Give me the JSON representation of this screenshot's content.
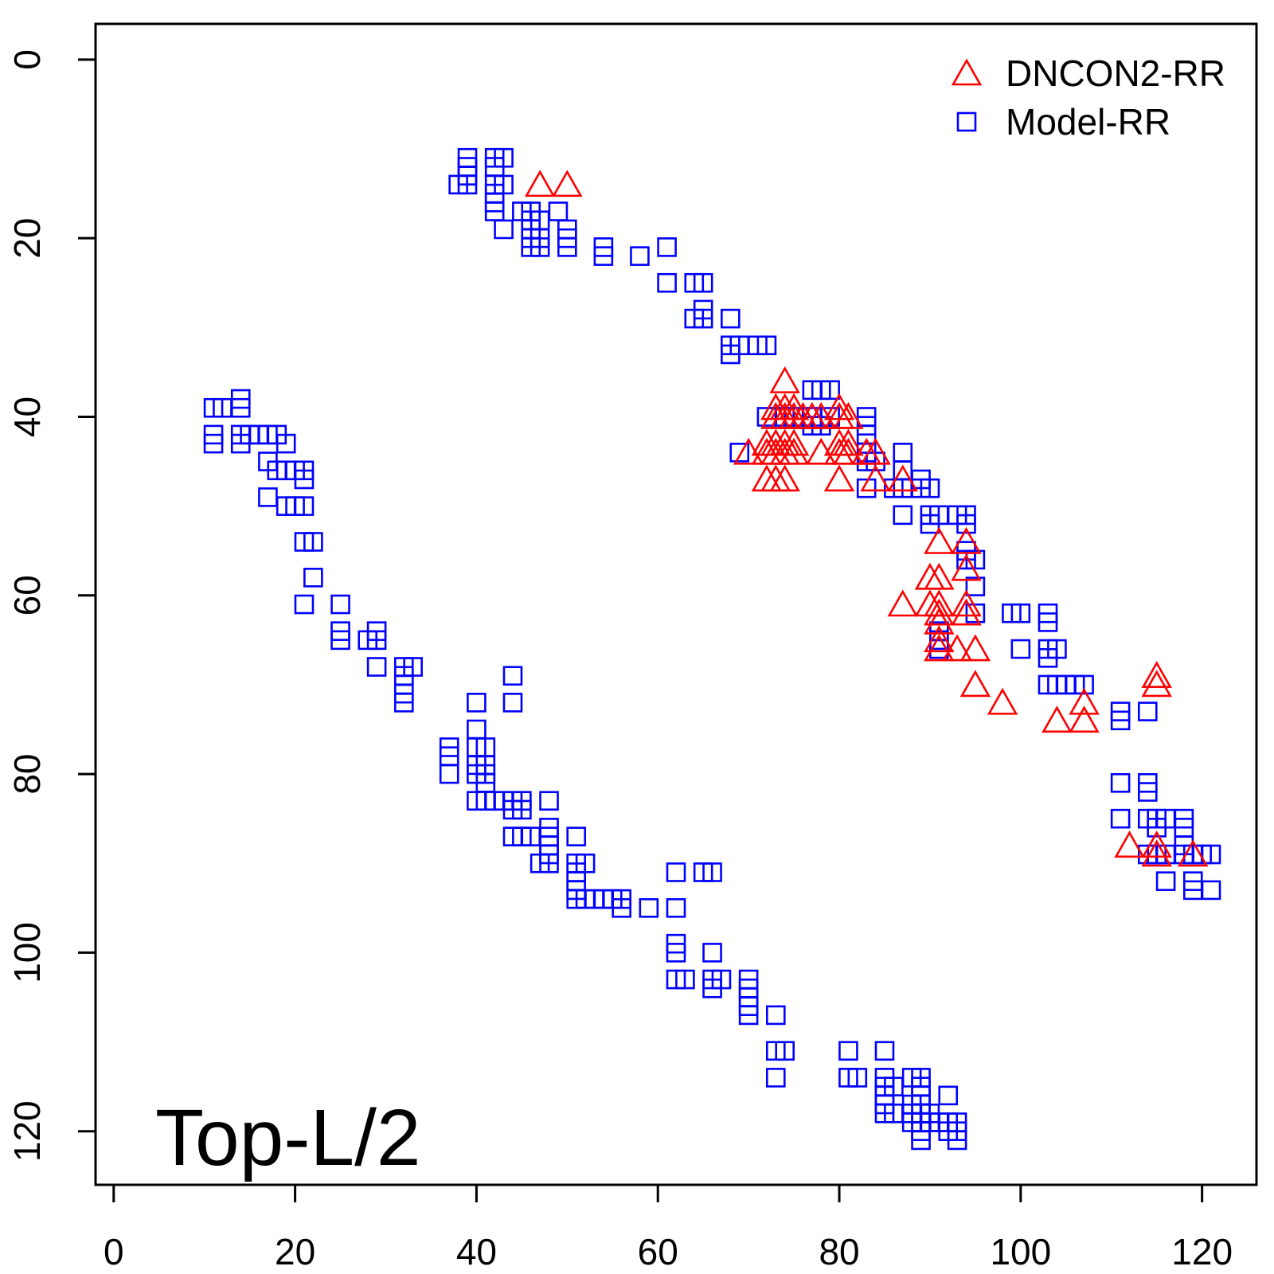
{
  "chart_data": {
    "type": "scatter",
    "title": "",
    "annotation": "Top-L/2",
    "xlabel": "",
    "ylabel": "",
    "xlim": [
      -2,
      126
    ],
    "ylim": [
      126,
      -4
    ],
    "y_reversed": true,
    "x_ticks": [
      "0",
      "20",
      "40",
      "60",
      "80",
      "100",
      "120"
    ],
    "y_ticks": [
      "0",
      "20",
      "40",
      "60",
      "80",
      "100",
      "120"
    ],
    "legend_position": "top-right",
    "series": [
      {
        "name": "DNCON2-RR",
        "marker": "triangle",
        "color": "#ff0000",
        "points": [
          [
            47,
            14
          ],
          [
            50,
            14
          ],
          [
            74,
            36
          ],
          [
            73,
            39
          ],
          [
            74,
            39
          ],
          [
            75,
            39
          ],
          [
            73,
            40
          ],
          [
            74,
            40
          ],
          [
            75,
            40
          ],
          [
            76,
            40
          ],
          [
            77,
            40
          ],
          [
            78,
            40
          ],
          [
            80,
            39
          ],
          [
            80,
            40
          ],
          [
            81,
            40
          ],
          [
            72,
            43
          ],
          [
            73,
            43
          ],
          [
            74,
            43
          ],
          [
            75,
            43
          ],
          [
            70,
            44
          ],
          [
            72,
            44
          ],
          [
            73,
            44
          ],
          [
            74,
            44
          ],
          [
            75,
            44
          ],
          [
            78,
            44
          ],
          [
            80,
            43
          ],
          [
            81,
            43
          ],
          [
            80,
            44
          ],
          [
            81,
            44
          ],
          [
            83,
            44
          ],
          [
            84,
            44
          ],
          [
            72,
            47
          ],
          [
            73,
            47
          ],
          [
            74,
            47
          ],
          [
            80,
            47
          ],
          [
            84,
            47
          ],
          [
            87,
            47
          ],
          [
            91,
            54
          ],
          [
            94,
            54
          ],
          [
            94,
            57
          ],
          [
            90,
            58
          ],
          [
            91,
            58
          ],
          [
            87,
            61
          ],
          [
            90,
            61
          ],
          [
            91,
            61
          ],
          [
            94,
            61
          ],
          [
            91,
            62
          ],
          [
            91,
            63
          ],
          [
            94,
            62
          ],
          [
            91,
            65
          ],
          [
            91,
            66
          ],
          [
            93,
            66
          ],
          [
            95,
            66
          ],
          [
            95,
            70
          ],
          [
            98,
            72
          ],
          [
            104,
            74
          ],
          [
            107,
            72
          ],
          [
            107,
            74
          ],
          [
            115,
            69
          ],
          [
            115,
            70
          ],
          [
            112,
            88
          ],
          [
            115,
            88
          ],
          [
            115,
            89
          ],
          [
            119,
            89
          ]
        ]
      },
      {
        "name": "Model-RR",
        "marker": "square",
        "color": "#0000ff",
        "points": [
          [
            39,
            11
          ],
          [
            39,
            12
          ],
          [
            39,
            13
          ],
          [
            38,
            14
          ],
          [
            39,
            14
          ],
          [
            42,
            11
          ],
          [
            43,
            11
          ],
          [
            42,
            12
          ],
          [
            42,
            14
          ],
          [
            43,
            14
          ],
          [
            42,
            15
          ],
          [
            42,
            16
          ],
          [
            42,
            17
          ],
          [
            43,
            19
          ],
          [
            45,
            17
          ],
          [
            46,
            17
          ],
          [
            46,
            18
          ],
          [
            46,
            19
          ],
          [
            47,
            18
          ],
          [
            46,
            20
          ],
          [
            47,
            20
          ],
          [
            46,
            21
          ],
          [
            47,
            21
          ],
          [
            49,
            17
          ],
          [
            50,
            19
          ],
          [
            50,
            20
          ],
          [
            50,
            21
          ],
          [
            54,
            21
          ],
          [
            54,
            22
          ],
          [
            58,
            22
          ],
          [
            61,
            21
          ],
          [
            61,
            25
          ],
          [
            64,
            25
          ],
          [
            65,
            25
          ],
          [
            65,
            28
          ],
          [
            64,
            29
          ],
          [
            65,
            29
          ],
          [
            68,
            29
          ],
          [
            68,
            32
          ],
          [
            69,
            32
          ],
          [
            71,
            32
          ],
          [
            72,
            32
          ],
          [
            68,
            33
          ],
          [
            77,
            37
          ],
          [
            78,
            37
          ],
          [
            79,
            37
          ],
          [
            72,
            40
          ],
          [
            74,
            40
          ],
          [
            75,
            40
          ],
          [
            77,
            40
          ],
          [
            77,
            41
          ],
          [
            78,
            41
          ],
          [
            79,
            40
          ],
          [
            83,
            40
          ],
          [
            83,
            41
          ],
          [
            83,
            42
          ],
          [
            83,
            44
          ],
          [
            83,
            45
          ],
          [
            84,
            45
          ],
          [
            69,
            44
          ],
          [
            87,
            44
          ],
          [
            87,
            46
          ],
          [
            86,
            48
          ],
          [
            87,
            48
          ],
          [
            89,
            47
          ],
          [
            89,
            48
          ],
          [
            90,
            48
          ],
          [
            83,
            48
          ],
          [
            87,
            51
          ],
          [
            90,
            51
          ],
          [
            91,
            51
          ],
          [
            93,
            51
          ],
          [
            94,
            51
          ],
          [
            90,
            52
          ],
          [
            94,
            52
          ],
          [
            94,
            55
          ],
          [
            94,
            56
          ],
          [
            95,
            56
          ],
          [
            95,
            59
          ],
          [
            95,
            62
          ],
          [
            99,
            62
          ],
          [
            100,
            62
          ],
          [
            103,
            62
          ],
          [
            103,
            63
          ],
          [
            100,
            66
          ],
          [
            103,
            66
          ],
          [
            104,
            66
          ],
          [
            103,
            67
          ],
          [
            103,
            70
          ],
          [
            104,
            70
          ],
          [
            105,
            70
          ],
          [
            106,
            70
          ],
          [
            107,
            70
          ],
          [
            91,
            64
          ],
          [
            91,
            65
          ],
          [
            91,
            66
          ],
          [
            111,
            73
          ],
          [
            111,
            74
          ],
          [
            114,
            73
          ],
          [
            111,
            81
          ],
          [
            114,
            81
          ],
          [
            114,
            82
          ],
          [
            111,
            85
          ],
          [
            114,
            85
          ],
          [
            115,
            85
          ],
          [
            116,
            85
          ],
          [
            118,
            85
          ],
          [
            115,
            86
          ],
          [
            118,
            86
          ],
          [
            114,
            89
          ],
          [
            115,
            89
          ],
          [
            116,
            89
          ],
          [
            118,
            88
          ],
          [
            118,
            89
          ],
          [
            119,
            89
          ],
          [
            120,
            89
          ],
          [
            121,
            89
          ],
          [
            116,
            92
          ],
          [
            119,
            92
          ],
          [
            119,
            93
          ],
          [
            121,
            93
          ],
          [
            11,
            39
          ],
          [
            12,
            39
          ],
          [
            14,
            38
          ],
          [
            14,
            39
          ],
          [
            11,
            42
          ],
          [
            11,
            43
          ],
          [
            14,
            42
          ],
          [
            15,
            42
          ],
          [
            14,
            43
          ],
          [
            16,
            42
          ],
          [
            17,
            42
          ],
          [
            18,
            42
          ],
          [
            19,
            43
          ],
          [
            17,
            45
          ],
          [
            18,
            46
          ],
          [
            19,
            46
          ],
          [
            20,
            46
          ],
          [
            21,
            46
          ],
          [
            17,
            49
          ],
          [
            21,
            47
          ],
          [
            19,
            50
          ],
          [
            20,
            50
          ],
          [
            21,
            50
          ],
          [
            21,
            54
          ],
          [
            22,
            54
          ],
          [
            22,
            58
          ],
          [
            21,
            61
          ],
          [
            25,
            61
          ],
          [
            25,
            64
          ],
          [
            25,
            65
          ],
          [
            28,
            65
          ],
          [
            29,
            64
          ],
          [
            29,
            65
          ],
          [
            29,
            68
          ],
          [
            32,
            68
          ],
          [
            33,
            68
          ],
          [
            32,
            69
          ],
          [
            32,
            70
          ],
          [
            32,
            71
          ],
          [
            32,
            72
          ],
          [
            40,
            72
          ],
          [
            44,
            69
          ],
          [
            44,
            72
          ],
          [
            40,
            75
          ],
          [
            37,
            77
          ],
          [
            40,
            77
          ],
          [
            41,
            77
          ],
          [
            37,
            78
          ],
          [
            40,
            79
          ],
          [
            41,
            79
          ],
          [
            37,
            80
          ],
          [
            40,
            80
          ],
          [
            41,
            80
          ],
          [
            41,
            81
          ],
          [
            40,
            83
          ],
          [
            41,
            83
          ],
          [
            42,
            83
          ],
          [
            43,
            83
          ],
          [
            44,
            83
          ],
          [
            45,
            83
          ],
          [
            48,
            83
          ],
          [
            44,
            84
          ],
          [
            45,
            84
          ],
          [
            44,
            87
          ],
          [
            45,
            87
          ],
          [
            46,
            87
          ],
          [
            48,
            86
          ],
          [
            48,
            87
          ],
          [
            48,
            88
          ],
          [
            48,
            89
          ],
          [
            47,
            90
          ],
          [
            48,
            90
          ],
          [
            51,
            87
          ],
          [
            51,
            90
          ],
          [
            52,
            90
          ],
          [
            51,
            91
          ],
          [
            51,
            92
          ],
          [
            51,
            93
          ],
          [
            51,
            94
          ],
          [
            52,
            94
          ],
          [
            53,
            94
          ],
          [
            54,
            94
          ],
          [
            55,
            94
          ],
          [
            56,
            94
          ],
          [
            56,
            95
          ],
          [
            59,
            95
          ],
          [
            62,
            91
          ],
          [
            65,
            91
          ],
          [
            66,
            91
          ],
          [
            62,
            95
          ],
          [
            62,
            99
          ],
          [
            62,
            100
          ],
          [
            62,
            103
          ],
          [
            63,
            103
          ],
          [
            66,
            100
          ],
          [
            66,
            103
          ],
          [
            67,
            103
          ],
          [
            66,
            104
          ],
          [
            70,
            103
          ],
          [
            70,
            104
          ],
          [
            70,
            105
          ],
          [
            70,
            106
          ],
          [
            70,
            107
          ],
          [
            73,
            107
          ],
          [
            73,
            111
          ],
          [
            74,
            111
          ],
          [
            73,
            114
          ],
          [
            81,
            111
          ],
          [
            81,
            114
          ],
          [
            82,
            114
          ],
          [
            85,
            111
          ],
          [
            85,
            114
          ],
          [
            85,
            115
          ],
          [
            86,
            115
          ],
          [
            85,
            116
          ],
          [
            85,
            117
          ],
          [
            85,
            118
          ],
          [
            86,
            118
          ],
          [
            88,
            114
          ],
          [
            89,
            114
          ],
          [
            89,
            115
          ],
          [
            89,
            116
          ],
          [
            88,
            117
          ],
          [
            89,
            117
          ],
          [
            88,
            118
          ],
          [
            89,
            118
          ],
          [
            90,
            118
          ],
          [
            88,
            119
          ],
          [
            89,
            119
          ],
          [
            90,
            119
          ],
          [
            92,
            116
          ],
          [
            91,
            119
          ],
          [
            92,
            119
          ],
          [
            93,
            119
          ],
          [
            89,
            120
          ],
          [
            89,
            121
          ],
          [
            93,
            121
          ],
          [
            92,
            120
          ],
          [
            93,
            120
          ]
        ]
      }
    ]
  }
}
